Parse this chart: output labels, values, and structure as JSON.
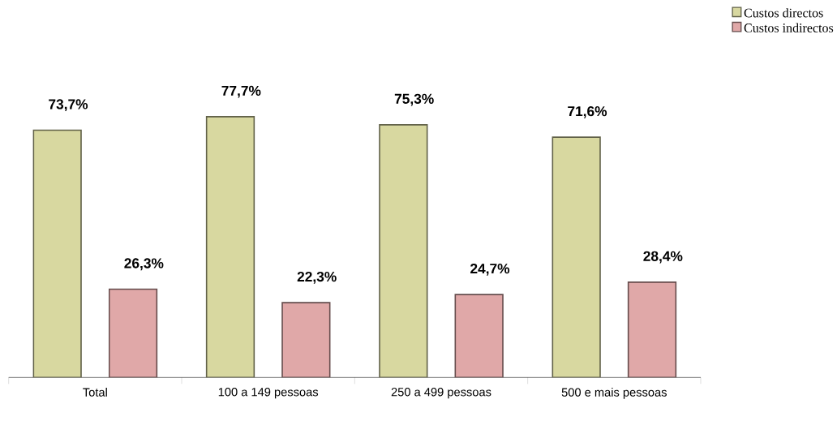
{
  "chart_data": {
    "type": "bar",
    "categories": [
      "Total",
      "100 a 149 pessoas",
      "250 a 499 pessoas",
      "500 e mais pessoas"
    ],
    "series": [
      {
        "name": "Custos directos",
        "color": "#d8d8a0",
        "values": [
          73.7,
          77.7,
          75.3,
          71.6
        ],
        "value_labels": [
          "73,7%",
          "77,7%",
          "75,3%",
          "71,6%"
        ]
      },
      {
        "name": "Custos indirectos",
        "color": "#e0a8a8",
        "values": [
          26.3,
          22.3,
          24.7,
          28.4
        ],
        "value_labels": [
          "26,3%",
          "22,3%",
          "24,7%",
          "28,4%"
        ]
      }
    ],
    "legend": "top right"
  }
}
